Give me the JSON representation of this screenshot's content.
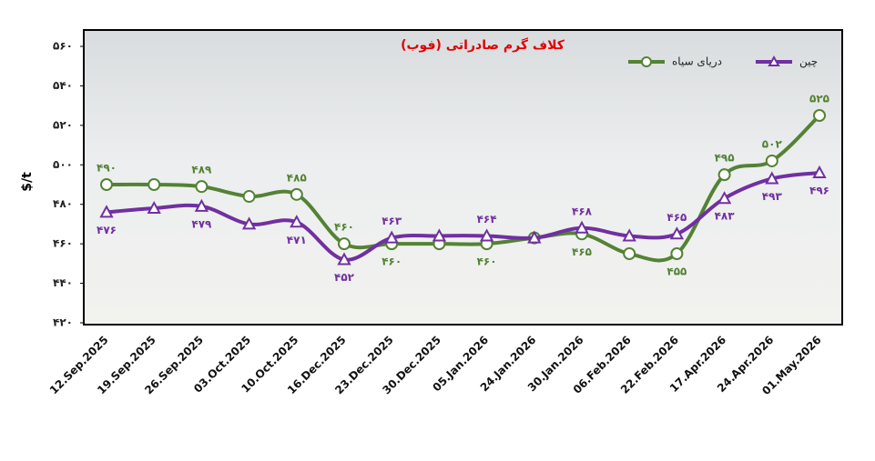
{
  "chart_data": {
    "type": "line",
    "title": "کلاف گرم صادراتی (فوب)",
    "y_label": "$/t",
    "categories": [
      "12.Sep.2025",
      "19.Sep.2025",
      "26.Sep.2025",
      "03.Oct.2025",
      "10.Oct.2025",
      "16.Dec.2025",
      "23.Dec.2025",
      "30.Dec.2025",
      "05.Jan.2026",
      "24.Jan.2026",
      "30.Jan.2026",
      "06.Feb.2026",
      "22.Feb.2026",
      "17.Apr.2026",
      "24.Apr.2026",
      "01.May.2026"
    ],
    "series": [
      {
        "name": "دریای سیاه",
        "color": "#548235",
        "marker": "circle",
        "values": [
          490,
          490,
          489,
          484,
          485,
          460,
          460,
          460,
          460,
          463,
          465,
          455,
          455,
          495,
          502,
          525
        ],
        "value_labels": [
          "۴۹۰",
          null,
          "۴۸۹",
          null,
          "۴۸۵",
          "۴۶۰",
          "۴۶۰",
          null,
          "۴۶۰",
          null,
          "۴۶۵",
          null,
          "۴۵۵",
          "۴۹۵",
          "۵۰۲",
          "۵۲۵"
        ]
      },
      {
        "name": "چین",
        "color": "#7030a0",
        "marker": "triangle",
        "values": [
          476,
          478,
          479,
          470,
          471,
          452,
          463,
          464,
          464,
          463,
          468,
          464,
          465,
          483,
          493,
          496
        ],
        "value_labels": [
          "۴۷۶",
          null,
          "۴۷۹",
          null,
          "۴۷۱",
          "۴۵۲",
          "۴۶۳",
          null,
          "۴۶۴",
          null,
          "۴۶۸",
          null,
          "۴۶۵",
          "۴۸۳",
          "۴۹۳",
          "۴۹۶"
        ]
      }
    ],
    "ylim": [
      420,
      560
    ],
    "yticks": [
      {
        "value": 420,
        "label": "۴۲۰"
      },
      {
        "value": 440,
        "label": "۴۴۰"
      },
      {
        "value": 460,
        "label": "۴۶۰"
      },
      {
        "value": 480,
        "label": "۴۸۰"
      },
      {
        "value": 500,
        "label": "۵۰۰"
      },
      {
        "value": 520,
        "label": "۵۲۰"
      },
      {
        "value": 540,
        "label": "۵۴۰"
      },
      {
        "value": 560,
        "label": "۵۶۰"
      }
    ],
    "legend": "top-right"
  }
}
